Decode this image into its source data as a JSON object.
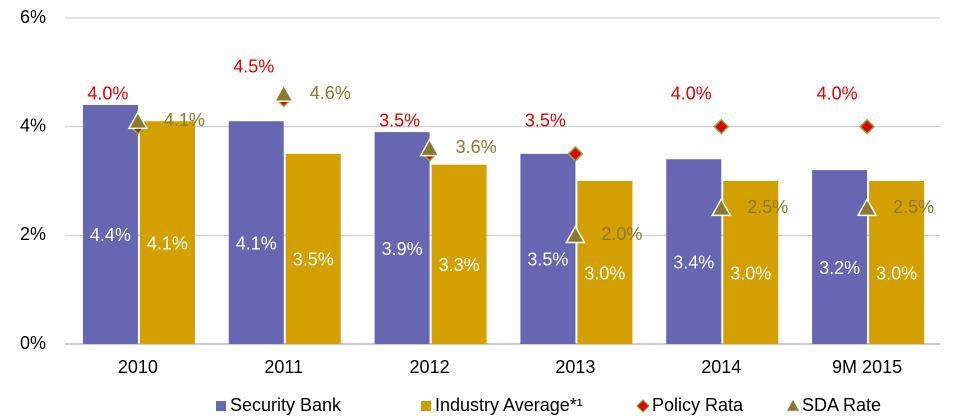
{
  "chart_data": {
    "type": "bar",
    "categories": [
      "2010",
      "2011",
      "2012",
      "2013",
      "2014",
      "9M 2015"
    ],
    "ylim": [
      0,
      6
    ],
    "yticks": [
      {
        "value": 0,
        "label": "0%"
      },
      {
        "value": 2,
        "label": "2%"
      },
      {
        "value": 4,
        "label": "4%"
      },
      {
        "value": 6,
        "label": "6%"
      }
    ],
    "grid": true,
    "legend": "bottom",
    "series": [
      {
        "name": "Security Bank",
        "color": "#6666b3",
        "mark": "bar",
        "values": [
          4.4,
          4.1,
          3.9,
          3.5,
          3.4,
          3.2
        ],
        "value_labels": [
          "4.4%",
          "4.1%",
          "3.9%",
          "3.5%",
          "3.4%",
          "3.2%"
        ]
      },
      {
        "name": "Industry Average*¹",
        "color": "#d4a000",
        "mark": "bar",
        "values": [
          4.1,
          3.5,
          3.3,
          3.0,
          3.0,
          3.0
        ],
        "value_labels": [
          "4.1%",
          "3.5%",
          "3.3%",
          "3.0%",
          "3.0%",
          "3.0%"
        ]
      },
      {
        "name": "Policy Rata",
        "color": "#e60000",
        "mark": "diamond",
        "values": [
          4.0,
          4.5,
          3.5,
          3.5,
          4.0,
          4.0
        ],
        "value_labels": [
          "4.0%",
          "4.5%",
          "3.5%",
          "3.5%",
          "4.0%",
          "4.0%"
        ]
      },
      {
        "name": "SDA Rate",
        "color": "#8b7a2c",
        "mark": "triangle",
        "values": [
          4.1,
          4.6,
          3.6,
          2.0,
          2.5,
          2.5
        ],
        "value_labels": [
          "4.1%",
          "4.6%",
          "3.6%",
          "2.0%",
          "2.5%",
          "2.5%"
        ]
      }
    ]
  }
}
